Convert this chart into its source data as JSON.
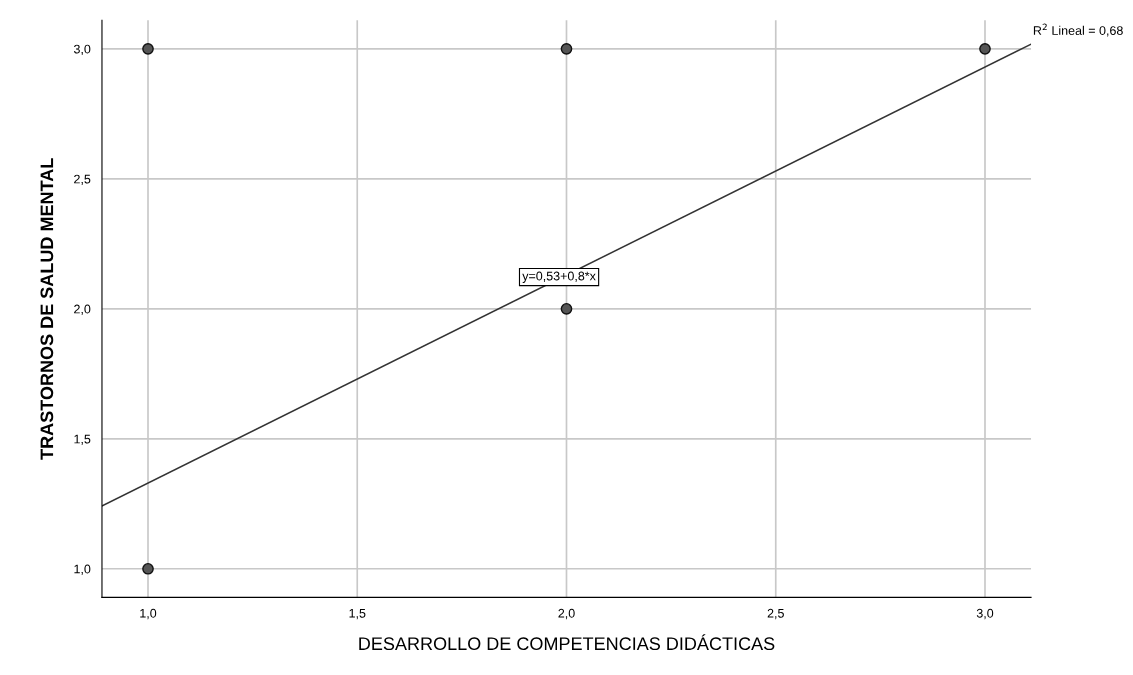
{
  "chart_data": {
    "type": "scatter",
    "xlabel": "DESARROLLO DE COMPETENCIAS DIDÁCTICAS",
    "ylabel": "TRASTORNOS DE SALUD MENTAL",
    "xlim": [
      0.89,
      3.11
    ],
    "ylim": [
      0.89,
      3.11
    ],
    "xticks": [
      {
        "value": 1.0,
        "label": "1,0"
      },
      {
        "value": 1.5,
        "label": "1,5"
      },
      {
        "value": 2.0,
        "label": "2,0"
      },
      {
        "value": 2.5,
        "label": "2,5"
      },
      {
        "value": 3.0,
        "label": "3,0"
      }
    ],
    "yticks": [
      {
        "value": 1.0,
        "label": "1,0"
      },
      {
        "value": 1.5,
        "label": "1,5"
      },
      {
        "value": 2.0,
        "label": "2,0"
      },
      {
        "value": 2.5,
        "label": "2,5"
      },
      {
        "value": 3.0,
        "label": "3,0"
      }
    ],
    "grid": true,
    "series": [
      {
        "marker": "circle",
        "color": "#555555",
        "x": [
          1,
          1,
          2,
          2,
          3
        ],
        "values": [
          3,
          1,
          3,
          2,
          3
        ]
      },
      {
        "type": "line",
        "color": "#333333",
        "x": [
          0.89,
          3.11
        ],
        "values": [
          1.242,
          3.018
        ]
      }
    ],
    "annotations": [
      "y=0,53+0,8*x",
      "R$^{2}$ Lineal = 0,68"
    ]
  }
}
